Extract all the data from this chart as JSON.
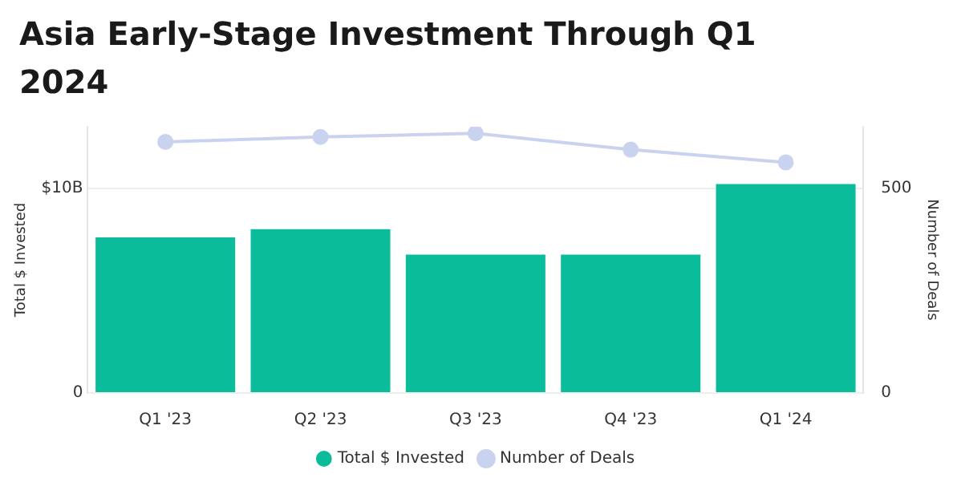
{
  "chart_data": {
    "type": "bar",
    "title": "Asia Early-Stage Investment Through Q1 2024",
    "ylabel": "Total $ Invested",
    "y2label": "Number of Deals",
    "categories": [
      "Q1 '23",
      "Q2 '23",
      "Q3 '23",
      "Q4 '23",
      "Q1 '24"
    ],
    "series": [
      {
        "name": "Total $ Invested",
        "color": "#0bbc9b",
        "values": [
          7.6,
          8.0,
          6.75,
          6.75,
          10.2
        ]
      },
      {
        "name": "Number of Deals",
        "type": "line",
        "axis": "y2",
        "color": "#c9d3f0",
        "values": [
          613,
          625,
          634,
          594,
          563
        ]
      }
    ],
    "ylim": [
      0,
      13
    ],
    "yticks": [
      0,
      {
        "value": 10,
        "label": "$10B"
      }
    ],
    "y2lim": [
      0,
      650
    ],
    "y2ticks": [
      0,
      500
    ],
    "grid": "y",
    "legend": "bottom",
    "marker": "circle"
  }
}
